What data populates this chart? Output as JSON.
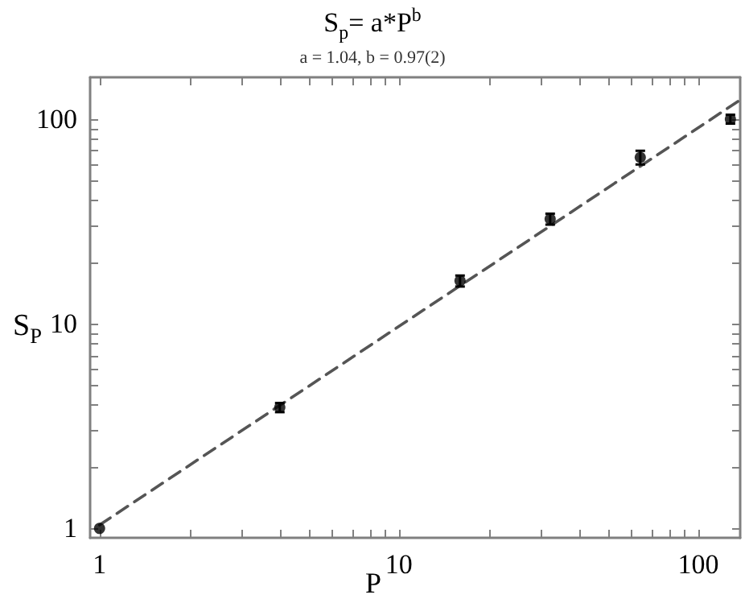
{
  "chart_data": {
    "type": "scatter",
    "title": "S$_{p}$= a*P$^{b}$",
    "subtitle": "a = 1.04, b = 0.97(2)",
    "xlabel": "P",
    "ylabel": "S$_{P}$",
    "log": "xy",
    "grid": false,
    "xlim": [
      0.93,
      138
    ],
    "ylim": [
      0.9,
      160
    ],
    "xticks": [
      1,
      {
        "value": 2,
        "label": null
      },
      {
        "value": 3,
        "label": null
      },
      {
        "value": 4,
        "label": null
      },
      {
        "value": 5,
        "label": null
      },
      {
        "value": 6,
        "label": null
      },
      {
        "value": 7,
        "label": null
      },
      {
        "value": 8,
        "label": null
      },
      {
        "value": 9,
        "label": null
      },
      10,
      {
        "value": 20,
        "label": null
      },
      {
        "value": 30,
        "label": null
      },
      {
        "value": 40,
        "label": null
      },
      {
        "value": 50,
        "label": null
      },
      {
        "value": 60,
        "label": null
      },
      {
        "value": 70,
        "label": null
      },
      {
        "value": 80,
        "label": null
      },
      {
        "value": 90,
        "label": null
      },
      100
    ],
    "yticks": [
      1,
      {
        "value": 2,
        "label": null
      },
      {
        "value": 3,
        "label": null
      },
      {
        "value": 4,
        "label": null
      },
      {
        "value": 5,
        "label": null
      },
      {
        "value": 6,
        "label": null
      },
      {
        "value": 7,
        "label": null
      },
      {
        "value": 8,
        "label": null
      },
      {
        "value": 9,
        "label": null
      },
      10,
      {
        "value": 20,
        "label": null
      },
      {
        "value": 30,
        "label": null
      },
      {
        "value": 40,
        "label": null
      },
      {
        "value": 50,
        "label": null
      },
      {
        "value": 60,
        "label": null
      },
      {
        "value": 70,
        "label": null
      },
      {
        "value": 80,
        "label": null
      },
      {
        "value": 90,
        "label": null
      },
      100
    ],
    "series": [
      {
        "type": "scatter",
        "color": "#000000",
        "marker": "circle",
        "x": [
          1,
          4,
          16,
          32,
          64,
          128
        ],
        "values": [
          1.0,
          3.9,
          16.2,
          32.5,
          65,
          100
        ],
        "errors": [
          null,
          0.2,
          1,
          2,
          5,
          5
        ]
      },
      {
        "type": "line",
        "color": "#555555",
        "line_style": "dashed",
        "marker": "none",
        "x": [
          1,
          138
        ],
        "values": [
          1.04,
          124
        ]
      }
    ]
  }
}
